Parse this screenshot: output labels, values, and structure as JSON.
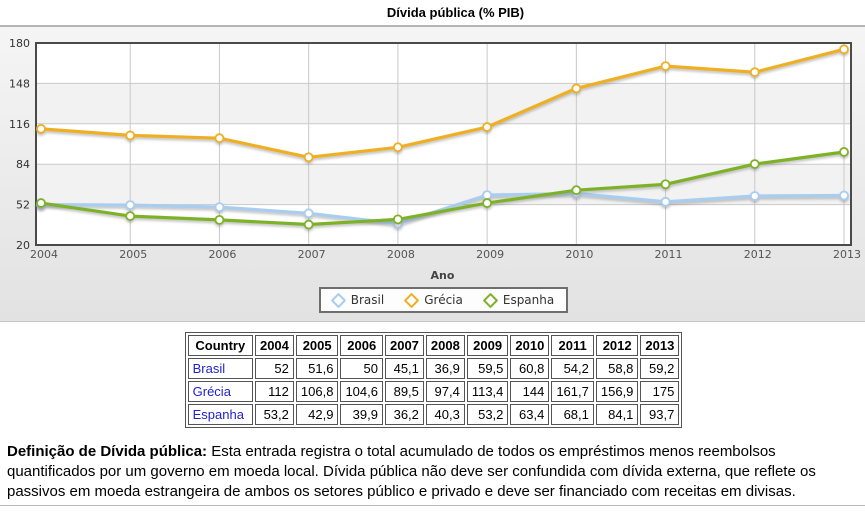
{
  "page": {
    "title": "Dívida pública (% PIB)"
  },
  "chart_data": {
    "type": "line",
    "title": "Dívida pública (% PIB)",
    "xlabel": "Ano",
    "ylabel": "",
    "x": [
      2004,
      2005,
      2006,
      2007,
      2008,
      2009,
      2010,
      2011,
      2012,
      2013
    ],
    "ylim": [
      20,
      180
    ],
    "yticks": [
      20,
      52,
      84,
      116,
      148,
      180
    ],
    "grid": true,
    "legend_position": "bottom-center",
    "series": [
      {
        "name": "Brasil",
        "color": "#a8cdee",
        "values": [
          52,
          51.6,
          50,
          45.1,
          36.9,
          59.5,
          60.8,
          54.2,
          58.8,
          59.2
        ]
      },
      {
        "name": "Grécia",
        "color": "#eeb022",
        "values": [
          112,
          106.8,
          104.6,
          89.5,
          97.4,
          113.4,
          144,
          161.7,
          156.9,
          175
        ]
      },
      {
        "name": "Espanha",
        "color": "#7eb228",
        "values": [
          53.2,
          42.9,
          39.9,
          36.2,
          40.3,
          53.2,
          63.4,
          68.1,
          84.1,
          93.7
        ]
      }
    ]
  },
  "table": {
    "header": [
      "Country",
      "2004",
      "2005",
      "2006",
      "2007",
      "2008",
      "2009",
      "2010",
      "2011",
      "2012",
      "2013"
    ],
    "link_color": "#2222cc",
    "rows": [
      {
        "country": "Brasil",
        "values": [
          "52",
          "51,6",
          "50",
          "45,1",
          "36,9",
          "59,5",
          "60,8",
          "54,2",
          "58,8",
          "59,2"
        ]
      },
      {
        "country": "Grécia",
        "values": [
          "112",
          "106,8",
          "104,6",
          "89,5",
          "97,4",
          "113,4",
          "144",
          "161,7",
          "156,9",
          "175"
        ]
      },
      {
        "country": "Espanha",
        "values": [
          "53,2",
          "42,9",
          "39,9",
          "36,2",
          "40,3",
          "53,2",
          "63,4",
          "68,1",
          "84,1",
          "93,7"
        ]
      }
    ]
  },
  "definition": {
    "lead": "Definição de Dívida pública:",
    "body": " Esta entrada registra o total acumulado de todos os empréstimos menos reembolsos quantificados por um governo em moeda local. Dívida pública não deve ser confundida com dívida externa, que reflete os passivos em moeda estrangeira de ambos os setores público e privado e deve ser financiado com receitas em divisas."
  }
}
